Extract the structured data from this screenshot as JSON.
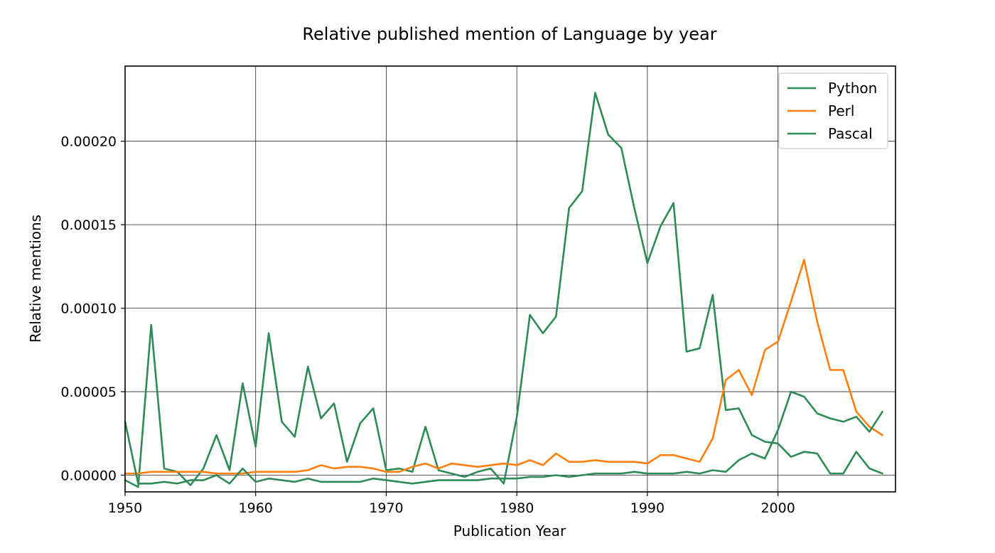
{
  "chart_data": {
    "type": "line",
    "title": "Relative published mention of Language by year",
    "xlabel": "Publication Year",
    "ylabel": "Relative mentions",
    "xlim": [
      1950,
      2009
    ],
    "ylim": [
      -1e-05,
      0.000245
    ],
    "xticks": [
      1950,
      1960,
      1970,
      1980,
      1990,
      2000
    ],
    "xtick_labels": [
      "1950",
      "1960",
      "1970",
      "1980",
      "1990",
      "2000"
    ],
    "yticks": [
      0,
      5e-05,
      0.0001,
      0.00015,
      0.0002
    ],
    "ytick_labels": [
      "0.00000",
      "0.00005",
      "0.00010",
      "0.00015",
      "0.00020"
    ],
    "grid": true,
    "legend": {
      "position": "top-right",
      "entries": [
        "Python",
        "Perl",
        "Pascal"
      ]
    },
    "x": [
      1950,
      1951,
      1952,
      1953,
      1954,
      1955,
      1956,
      1957,
      1958,
      1959,
      1960,
      1961,
      1962,
      1963,
      1964,
      1965,
      1966,
      1967,
      1968,
      1969,
      1970,
      1971,
      1972,
      1973,
      1974,
      1975,
      1976,
      1977,
      1978,
      1979,
      1980,
      1981,
      1982,
      1983,
      1984,
      1985,
      1986,
      1987,
      1988,
      1989,
      1990,
      1991,
      1992,
      1993,
      1994,
      1995,
      1996,
      1997,
      1998,
      1999,
      2000,
      2001,
      2002,
      2003,
      2004,
      2005,
      2006,
      2007,
      2008
    ],
    "series": [
      {
        "name": "Python",
        "color": "#2e8b57",
        "values": [
          -3e-06,
          -7e-06,
          9e-05,
          4e-06,
          2e-06,
          -6e-06,
          4e-06,
          2.4e-05,
          3e-06,
          5.5e-05,
          1.7e-05,
          8.5e-05,
          3.2e-05,
          2.3e-05,
          6.5e-05,
          3.4e-05,
          4.3e-05,
          8e-06,
          3.1e-05,
          4e-05,
          3e-06,
          4e-06,
          2e-06,
          2.9e-05,
          3e-06,
          1e-06,
          -1e-06,
          2e-06,
          4e-06,
          -5e-06,
          3.5e-05,
          9.6e-05,
          8.5e-05,
          9.5e-05,
          0.00016,
          0.00017,
          0.000229,
          0.000204,
          0.000196,
          0.00016,
          0.000127,
          0.000149,
          0.000163,
          7.4e-05,
          7.6e-05,
          0.000108,
          3.9e-05,
          4e-05,
          2.4e-05,
          2e-05,
          1.9e-05,
          1.1e-05,
          1.4e-05,
          1.3e-05,
          1e-06,
          1e-06,
          1.4e-05,
          4e-06,
          1e-06
        ]
      },
      {
        "name": "Perl",
        "color": "#ff7f0e",
        "values": [
          1e-06,
          1e-06,
          2e-06,
          2e-06,
          2e-06,
          2e-06,
          2e-06,
          1e-06,
          1e-06,
          1e-06,
          2e-06,
          2e-06,
          2e-06,
          2e-06,
          3e-06,
          6e-06,
          4e-06,
          5e-06,
          5e-06,
          4e-06,
          2e-06,
          2e-06,
          5e-06,
          7e-06,
          4e-06,
          7e-06,
          6e-06,
          5e-06,
          6e-06,
          7e-06,
          6e-06,
          9e-06,
          6e-06,
          1.3e-05,
          8e-06,
          8e-06,
          9e-06,
          8e-06,
          8e-06,
          8e-06,
          7e-06,
          1.2e-05,
          1.2e-05,
          1e-05,
          8e-06,
          2.2e-05,
          5.7e-05,
          6.3e-05,
          4.8e-05,
          7.5e-05,
          8e-05,
          0.000104,
          0.000129,
          9.2e-05,
          6.3e-05,
          6.3e-05,
          3.8e-05,
          2.9e-05,
          2.4e-05
        ]
      },
      {
        "name": "Pascal",
        "color": "#2e8b57",
        "values": [
          3.2e-05,
          -5e-06,
          -5e-06,
          -4e-06,
          -5e-06,
          -3e-06,
          -3e-06,
          0.0,
          -5e-06,
          4e-06,
          -4e-06,
          -2e-06,
          -3e-06,
          -4e-06,
          -2e-06,
          -4e-06,
          -4e-06,
          -4e-06,
          -4e-06,
          -2e-06,
          -3e-06,
          -4e-06,
          -5e-06,
          -4e-06,
          -3e-06,
          -3e-06,
          -3e-06,
          -3e-06,
          -2e-06,
          -2e-06,
          -2e-06,
          -1e-06,
          -1e-06,
          0.0,
          -1e-06,
          0.0,
          1e-06,
          1e-06,
          1e-06,
          2e-06,
          1e-06,
          1e-06,
          1e-06,
          2e-06,
          1e-06,
          3e-06,
          2e-06,
          9e-06,
          1.3e-05,
          1e-05,
          2.7e-05,
          5e-05,
          4.7e-05,
          3.7e-05,
          3.4e-05,
          3.2e-05,
          3.5e-05,
          2.6e-05,
          3.8e-05
        ]
      }
    ]
  }
}
